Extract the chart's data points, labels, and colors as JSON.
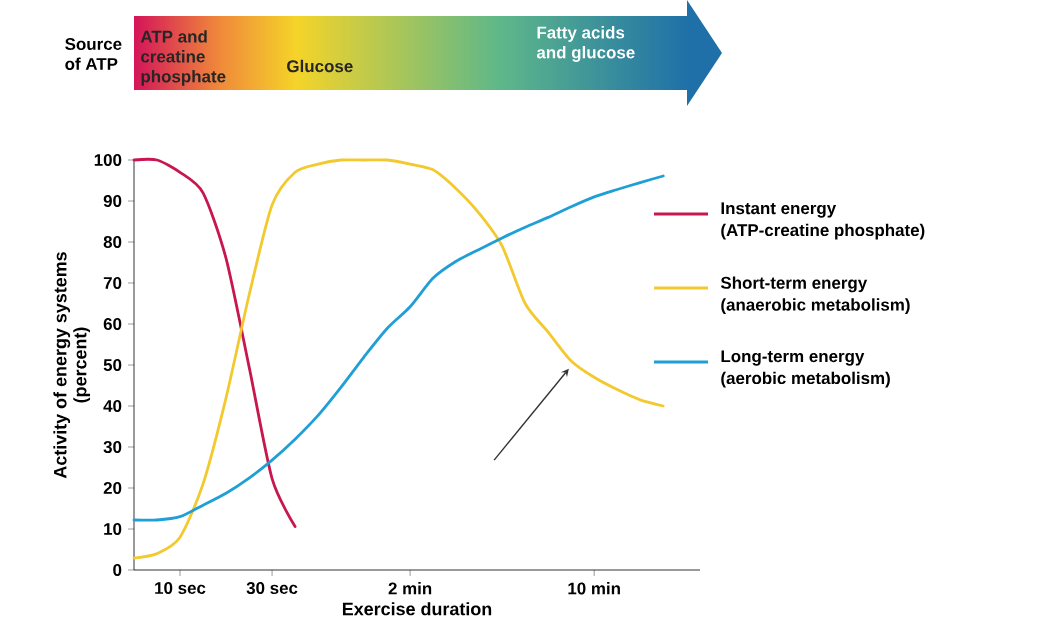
{
  "chart_data": {
    "type": "line",
    "xlabel": "Exercise duration",
    "ylabel": "Activity of energy systems (percent)",
    "annotations": [
      "Source of ATP",
      "ATP and creatine phosphate",
      "Glucose",
      "Fatty acids and glucose"
    ],
    "categories": [
      null,
      null,
      "10 sec",
      null,
      null,
      null,
      "30 sec",
      null,
      null,
      null,
      null,
      null,
      "2 min",
      null,
      null,
      null,
      null,
      null,
      null,
      null,
      "10 min",
      null,
      null,
      null,
      null
    ],
    "ylim": [
      0,
      100
    ],
    "yticks": [
      0,
      10,
      20,
      30,
      40,
      50,
      60,
      70,
      80,
      90,
      100
    ],
    "legend": "right",
    "grid": false,
    "marker": "none",
    "line_style": "solid",
    "series": [
      {
        "name": "Instant energy (ATP-creatine phosphate)",
        "color": "#c8174f",
        "values": [
          100,
          100,
          97,
          92,
          76,
          49.6,
          22.3,
          10.6,
          null,
          null,
          null,
          null,
          null,
          null,
          null,
          null,
          null,
          null,
          null,
          null,
          null,
          null,
          null,
          null,
          null
        ]
      },
      {
        "name": "Short-term energy (anaerobic metabolism)",
        "color": "#f2c92e",
        "values": [
          2.9,
          4,
          8,
          21,
          42,
          67,
          89,
          97,
          99,
          100,
          100,
          100,
          99,
          97.6,
          93,
          87,
          79,
          65,
          58,
          51,
          47,
          44,
          41.5,
          40,
          null
        ]
      },
      {
        "name": "Long-term energy (aerobic metabolism)",
        "color": "#1f9fd6",
        "values": [
          12.2,
          12.2,
          13,
          15.8,
          18.7,
          22.4,
          26.8,
          31.9,
          37.7,
          44.6,
          52,
          58.9,
          64.2,
          71.2,
          75.3,
          78.2,
          81,
          83.6,
          86,
          88.6,
          91,
          92.8,
          94.5,
          96.1,
          null
        ]
      }
    ]
  }
}
